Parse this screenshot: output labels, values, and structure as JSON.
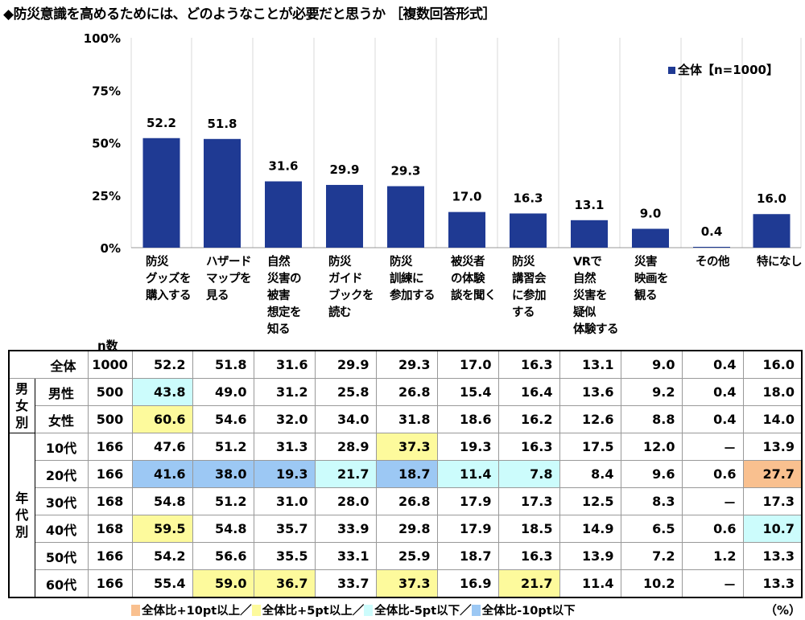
{
  "title": "◆防災意識を高めるためには、どのようなことが必要だと思うか ［複数回答形式］",
  "legend": "全体【n=1000】",
  "unit": "（%）",
  "colors": {
    "bar": "#1f3a93",
    "p10": "#f9c08f",
    "p5": "#fdfa9c",
    "m5": "#ccfcfc",
    "m10": "#9cc8f4"
  },
  "footer_legend": [
    {
      "key": "p10",
      "label": "全体比+10pt以上／"
    },
    {
      "key": "p5",
      "label": "全体比+5pt以上／"
    },
    {
      "key": "m5",
      "label": "全体比-5pt以下／"
    },
    {
      "key": "m10",
      "label": "全体比-10pt以下"
    }
  ],
  "chart_data": {
    "type": "bar",
    "categories": [
      [
        "防災",
        "グッズを",
        "購入する"
      ],
      [
        "ハザード",
        "マップを",
        "見る"
      ],
      [
        "自然",
        "災害の",
        "被害",
        "想定を",
        "知る"
      ],
      [
        "防災",
        "ガイド",
        "ブックを",
        "読む"
      ],
      [
        "防災",
        "訓練に",
        "参加する"
      ],
      [
        "被災者",
        "の体験",
        "談を聞く"
      ],
      [
        "防災",
        "講習会",
        "に参加",
        "する"
      ],
      [
        "VRで",
        "自然",
        "災害を",
        "疑似",
        "体験する"
      ],
      [
        "災害",
        "映画を",
        "観る"
      ],
      [
        "その他"
      ],
      [
        "特になし"
      ]
    ],
    "series": [
      {
        "name": "全体【n=1000】",
        "values": [
          52.2,
          51.8,
          31.6,
          29.9,
          29.3,
          17.0,
          16.3,
          13.1,
          9.0,
          0.4,
          16.0
        ]
      }
    ],
    "yticks": [
      "0%",
      "25%",
      "50%",
      "75%",
      "100%"
    ],
    "ylim": [
      0,
      100
    ],
    "legend_position": "top-right",
    "grid": "vertical"
  },
  "table": {
    "n_header": "n数",
    "rows": [
      {
        "group": "",
        "label": "全体",
        "n": "1000",
        "values": [
          "52.2",
          "51.8",
          "31.6",
          "29.9",
          "29.3",
          "17.0",
          "16.3",
          "13.1",
          "9.0",
          "0.4",
          "16.0"
        ],
        "hl": [
          null,
          null,
          null,
          null,
          null,
          null,
          null,
          null,
          null,
          null,
          null
        ]
      },
      {
        "group": "男女別",
        "label": "男性",
        "n": "500",
        "values": [
          "43.8",
          "49.0",
          "31.2",
          "25.8",
          "26.8",
          "15.4",
          "16.4",
          "13.6",
          "9.2",
          "0.4",
          "18.0"
        ],
        "hl": [
          "m5",
          null,
          null,
          null,
          null,
          null,
          null,
          null,
          null,
          null,
          null
        ]
      },
      {
        "group": "男女別",
        "label": "女性",
        "n": "500",
        "values": [
          "60.6",
          "54.6",
          "32.0",
          "34.0",
          "31.8",
          "18.6",
          "16.2",
          "12.6",
          "8.8",
          "0.4",
          "14.0"
        ],
        "hl": [
          "p5",
          null,
          null,
          null,
          null,
          null,
          null,
          null,
          null,
          null,
          null
        ]
      },
      {
        "group": "年代別",
        "label": "10代",
        "n": "166",
        "values": [
          "47.6",
          "51.2",
          "31.3",
          "28.9",
          "37.3",
          "19.3",
          "16.3",
          "17.5",
          "12.0",
          "－",
          "13.9"
        ],
        "hl": [
          null,
          null,
          null,
          null,
          "p5",
          null,
          null,
          null,
          null,
          null,
          null
        ]
      },
      {
        "group": "年代別",
        "label": "20代",
        "n": "166",
        "values": [
          "41.6",
          "38.0",
          "19.3",
          "21.7",
          "18.7",
          "11.4",
          "7.8",
          "8.4",
          "9.6",
          "0.6",
          "27.7"
        ],
        "hl": [
          "m10",
          "m10",
          "m10",
          "m5",
          "m10",
          "m5",
          "m5",
          null,
          null,
          null,
          "p10"
        ]
      },
      {
        "group": "年代別",
        "label": "30代",
        "n": "168",
        "values": [
          "54.8",
          "51.2",
          "31.0",
          "28.0",
          "26.8",
          "17.9",
          "17.3",
          "12.5",
          "8.3",
          "－",
          "17.3"
        ],
        "hl": [
          null,
          null,
          null,
          null,
          null,
          null,
          null,
          null,
          null,
          null,
          null
        ]
      },
      {
        "group": "年代別",
        "label": "40代",
        "n": "168",
        "values": [
          "59.5",
          "54.8",
          "35.7",
          "33.9",
          "29.8",
          "17.9",
          "18.5",
          "14.9",
          "6.5",
          "0.6",
          "10.7"
        ],
        "hl": [
          "p5",
          null,
          null,
          null,
          null,
          null,
          null,
          null,
          null,
          null,
          "m5"
        ]
      },
      {
        "group": "年代別",
        "label": "50代",
        "n": "166",
        "values": [
          "54.2",
          "56.6",
          "35.5",
          "33.1",
          "25.9",
          "18.7",
          "16.3",
          "13.9",
          "7.2",
          "1.2",
          "13.3"
        ],
        "hl": [
          null,
          null,
          null,
          null,
          null,
          null,
          null,
          null,
          null,
          null,
          null
        ]
      },
      {
        "group": "年代別",
        "label": "60代",
        "n": "166",
        "values": [
          "55.4",
          "59.0",
          "36.7",
          "33.7",
          "37.3",
          "16.9",
          "21.7",
          "11.4",
          "10.2",
          "－",
          "13.3"
        ],
        "hl": [
          null,
          "p5",
          "p5",
          null,
          "p5",
          null,
          "p5",
          null,
          null,
          null,
          null
        ]
      }
    ]
  }
}
